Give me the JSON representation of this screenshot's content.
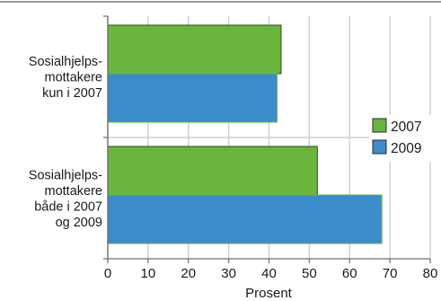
{
  "chart_data": {
    "type": "bar",
    "orientation": "horizontal",
    "categories": [
      [
        "Sosialhjelps-",
        "mottakere",
        "kun i 2007"
      ],
      [
        "Sosialhjelps-",
        "mottakere",
        "både i 2007",
        "og 2009"
      ]
    ],
    "series": [
      {
        "name": "2007",
        "color": "#6ab63c",
        "values": [
          43,
          52
        ]
      },
      {
        "name": "2009",
        "color": "#3b8ccb",
        "values": [
          42,
          68
        ]
      }
    ],
    "xlabel": "Prosent",
    "xlim": [
      0,
      80
    ],
    "xticks": [
      "0",
      "10",
      "20",
      "30",
      "40",
      "50",
      "60",
      "70",
      "80"
    ],
    "grid": true,
    "legend": "right"
  }
}
